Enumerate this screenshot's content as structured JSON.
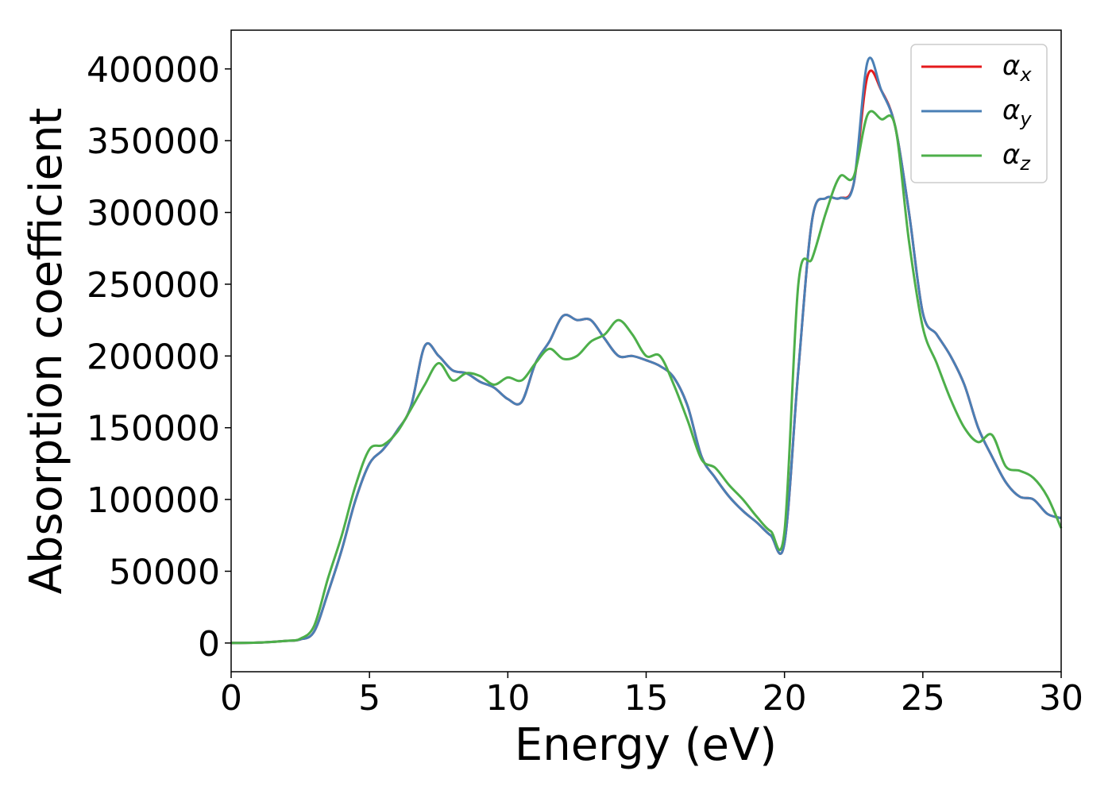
{
  "chart_data": {
    "type": "line",
    "title": "",
    "xlabel": "Energy (eV)",
    "ylabel": "Absorption coefficient",
    "xlim": [
      0,
      30
    ],
    "ylim": [
      -20000,
      427000
    ],
    "xticks": [
      0,
      5,
      10,
      15,
      20,
      25,
      30
    ],
    "yticks": [
      0,
      50000,
      100000,
      150000,
      200000,
      250000,
      300000,
      350000,
      400000
    ],
    "grid": false,
    "legend": {
      "position": "top-right"
    },
    "x": [
      0,
      1,
      2,
      2.5,
      3,
      3.5,
      4,
      4.5,
      5,
      5.5,
      6,
      6.5,
      7,
      7.5,
      8,
      8.5,
      9,
      9.5,
      10,
      10.5,
      11,
      11.5,
      12,
      12.5,
      13,
      13.5,
      14,
      14.5,
      15,
      15.5,
      16,
      16.5,
      17,
      17.5,
      18,
      18.5,
      19,
      19.5,
      20,
      20.5,
      21,
      21.5,
      22,
      22.5,
      23,
      23.5,
      24,
      24.5,
      25,
      25.5,
      26,
      26.5,
      27,
      27.5,
      28,
      28.5,
      29,
      29.5,
      30
    ],
    "series": [
      {
        "name": "α",
        "subscript": "x",
        "color": "#e41a1c",
        "values": [
          0,
          300,
          1500,
          2500,
          8000,
          35000,
          65000,
          100000,
          125000,
          135000,
          148000,
          165000,
          207000,
          200000,
          190000,
          188000,
          182000,
          178000,
          170000,
          168000,
          195000,
          210000,
          228000,
          225000,
          225000,
          212000,
          200000,
          200000,
          197000,
          193000,
          185000,
          165000,
          130000,
          115000,
          102000,
          92000,
          84000,
          75000,
          70000,
          190000,
          295000,
          310000,
          310000,
          320000,
          395000,
          385000,
          360000,
          300000,
          230000,
          215000,
          200000,
          180000,
          150000,
          130000,
          112000,
          102000,
          100000,
          90000,
          87000
        ]
      },
      {
        "name": "α",
        "subscript": "y",
        "color": "#4a7fb5",
        "values": [
          0,
          300,
          1500,
          2500,
          8000,
          35000,
          65000,
          100000,
          125000,
          135000,
          148000,
          165000,
          207000,
          200000,
          190000,
          188000,
          182000,
          178000,
          170000,
          168000,
          195000,
          210000,
          228000,
          225000,
          225000,
          212000,
          200000,
          200000,
          197000,
          193000,
          185000,
          165000,
          130000,
          115000,
          102000,
          92000,
          84000,
          75000,
          70000,
          190000,
          295000,
          310000,
          310000,
          320000,
          405000,
          385000,
          360000,
          300000,
          230000,
          215000,
          200000,
          180000,
          150000,
          130000,
          112000,
          102000,
          100000,
          90000,
          87000
        ]
      },
      {
        "name": "α",
        "subscript": "z",
        "color": "#4daf4a",
        "values": [
          0,
          300,
          1500,
          3000,
          12000,
          45000,
          75000,
          110000,
          135000,
          138000,
          147000,
          163000,
          180000,
          195000,
          183000,
          188000,
          186000,
          180000,
          185000,
          183000,
          195000,
          205000,
          198000,
          200000,
          210000,
          215000,
          225000,
          215000,
          200000,
          200000,
          180000,
          155000,
          128000,
          122000,
          110000,
          100000,
          88000,
          78000,
          78000,
          250000,
          268000,
          300000,
          325000,
          325000,
          368000,
          365000,
          360000,
          280000,
          220000,
          195000,
          170000,
          150000,
          140000,
          145000,
          123000,
          120000,
          115000,
          102000,
          80000
        ]
      }
    ]
  }
}
